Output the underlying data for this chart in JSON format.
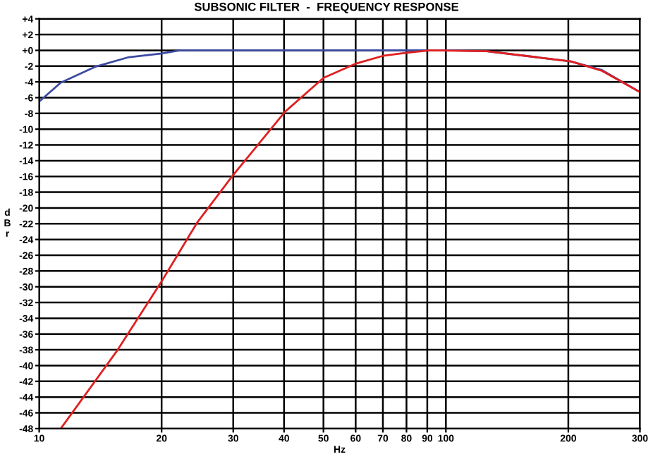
{
  "chart_data": {
    "type": "line",
    "title": "SUBSONIC FILTER  -  FREQUENCY RESPONSE",
    "xlabel": "Hz",
    "ylabel": "d\nB\nr",
    "log": "x",
    "grid": true,
    "marker": "none",
    "line_style": "solid",
    "xlim": [
      10,
      300
    ],
    "xticks": [
      10,
      20,
      30,
      40,
      50,
      60,
      70,
      80,
      90,
      100,
      200,
      300
    ],
    "ylim": [
      -48,
      4
    ],
    "yticks": [
      {
        "value": 4,
        "label": "+4"
      },
      {
        "value": 2,
        "label": "+2"
      },
      {
        "value": 0,
        "label": "+0"
      },
      -2,
      -4,
      -6,
      -8,
      -10,
      -12,
      -14,
      -16,
      -18,
      -20,
      -22,
      -24,
      -26,
      -28,
      -30,
      -32,
      -34,
      -36,
      -38,
      -40,
      -42,
      -44,
      -46,
      -48
    ],
    "series": [
      {
        "color": "#3c4aa0",
        "x": [
          10,
          11.3,
          13.7,
          16.5,
          20,
          22.2,
          50,
          100,
          126,
          203,
          242,
          300
        ],
        "values": [
          -6.5,
          -4.1,
          -2.1,
          -0.9,
          -0.4,
          0,
          0,
          0,
          -0.1,
          -1.4,
          -2.5,
          -5.3
        ]
      },
      {
        "color": "#e02020",
        "x": [
          11.3,
          15.6,
          19.9,
          24.5,
          30,
          40.2,
          50,
          59.9,
          70,
          80,
          91.5,
          126,
          203,
          242,
          300
        ],
        "values": [
          -48,
          -38,
          -29.5,
          -21.8,
          -15.8,
          -7.8,
          -3.5,
          -1.7,
          -0.7,
          -0.3,
          0,
          -0.1,
          -1.4,
          -2.6,
          -5.3
        ]
      }
    ]
  }
}
